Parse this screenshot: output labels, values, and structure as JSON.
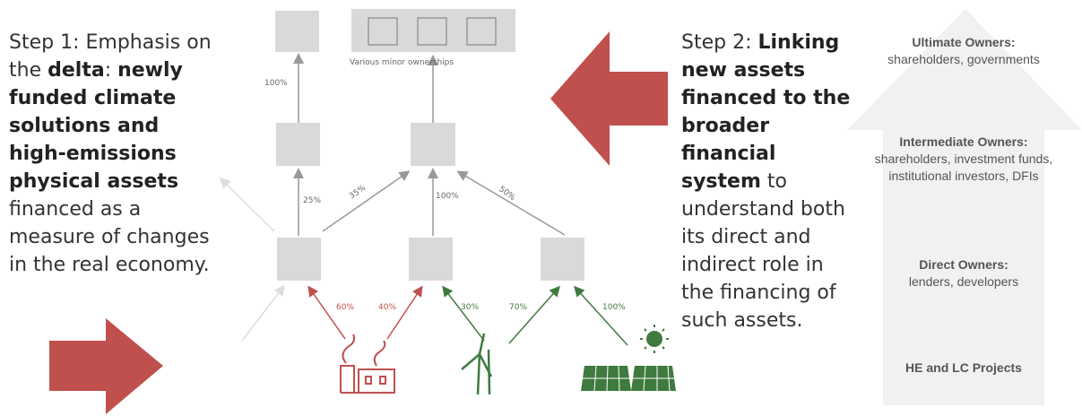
{
  "step1": {
    "segments": [
      "Step 1: Emphasis on the ",
      "delta",
      ": ",
      "newly funded climate solutions and high-emissions physical assets",
      " financed as a measure of changes in the real economy."
    ]
  },
  "step2": {
    "segments": [
      "Step 2: ",
      "Linking new assets financed to the broader financial system",
      " to understand both its direct and indirect role in the financing of such assets."
    ]
  },
  "diagram": {
    "top_link": "100%",
    "minor_ownerships": "Various minor ownerships",
    "mid_links": [
      "25%",
      "35%",
      "100%",
      "50%"
    ],
    "bottom_links": [
      "60%",
      "40%",
      "30%",
      "70%",
      "100%"
    ]
  },
  "ownership_levels": [
    {
      "title": "Ultimate Owners:",
      "detail": "shareholders, governments"
    },
    {
      "title": "Intermediate Owners:",
      "detail": "shareholders, investment funds, institutional investors, DFIs"
    },
    {
      "title": "Direct Owners:",
      "detail": "lenders, developers"
    },
    {
      "title": "HE and LC Projects"
    }
  ]
}
